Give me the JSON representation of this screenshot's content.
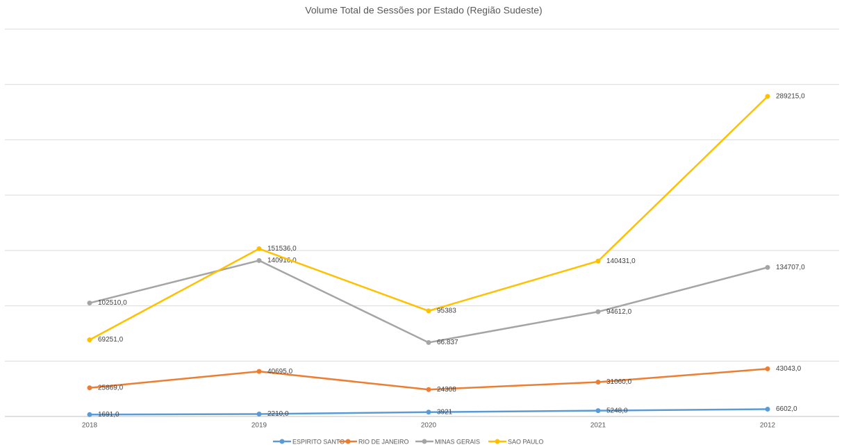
{
  "chart_data": {
    "type": "line",
    "title": "Volume Total de Sessões por Estado (Região Sudeste)",
    "categories": [
      "2018",
      "2019",
      "2020",
      "2021",
      "2012"
    ],
    "ylim": [
      0,
      350000
    ],
    "yticks": [
      0,
      50000,
      100000,
      150000,
      200000,
      250000,
      300000,
      350000
    ],
    "grid": true,
    "series": [
      {
        "name": "ESPIRITO SANTO",
        "color": "#5b9bd5",
        "values": [
          1691,
          2210,
          3921,
          5248,
          6602
        ],
        "value_labels": [
          "1691,0",
          "2210,0",
          "3921",
          "5248,0",
          "6602,0"
        ]
      },
      {
        "name": "RIO DE JANEIRO",
        "color": "#ed7d31",
        "values": [
          25869,
          40695,
          24308,
          31060,
          43043
        ],
        "value_labels": [
          "25869,0",
          "40695,0",
          "24308",
          "31060,0",
          "43043,0"
        ]
      },
      {
        "name": "MINAS GERAIS",
        "color": "#a5a5a5",
        "values": [
          102510,
          140916,
          66837,
          94612,
          134707
        ],
        "value_labels": [
          "102510,0",
          "140916,0",
          "66.837",
          "94612,0",
          "134707,0"
        ]
      },
      {
        "name": "SAO PAULO",
        "color": "#ffc000",
        "values": [
          69251,
          151536,
          95383,
          140431,
          289215
        ],
        "value_labels": [
          "69251,0",
          "151536,0",
          "95383",
          "140431,0",
          "289215,0"
        ]
      }
    ]
  }
}
